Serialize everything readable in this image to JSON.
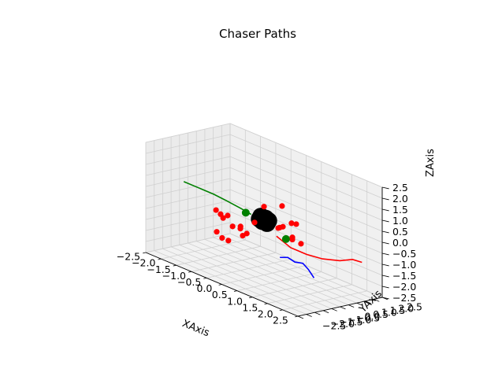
{
  "chart_data": {
    "type": "scatter3d",
    "title": "Chaser Paths",
    "xlabel": "XAxis",
    "ylabel": "YAxis",
    "zlabel": "ZAxis",
    "xlim": [
      -2.5,
      2.5
    ],
    "ylim": [
      -2.5,
      2.5
    ],
    "zlim": [
      -2.5,
      2.5
    ],
    "tick_values": [
      -2.5,
      -2.0,
      -1.5,
      -1.0,
      -0.5,
      0.0,
      0.5,
      1.0,
      1.5,
      2.0,
      2.5
    ],
    "x_tick_labels": [
      "−2.5",
      "−2.0",
      "−1.5",
      "−1.0",
      "−0.5",
      "0.0",
      "0.5",
      "1.0",
      "1.5",
      "2.0",
      "2.5"
    ],
    "y_tick_labels": [
      "−2.5",
      "−2.0",
      "−1.5",
      "−1.0",
      "−0.5",
      "0.0",
      "0.5",
      "1.0",
      "1.5",
      "2.0",
      "2.5"
    ],
    "z_tick_labels": [
      "−2.5",
      "−2.0",
      "−1.5",
      "−1.0",
      "−0.5",
      "0.0",
      "0.5",
      "1.0",
      "1.5",
      "2.0",
      "2.5"
    ],
    "grid": true,
    "colors": {
      "red": "#ff0000",
      "green": "#008000",
      "blue": "#0000ff",
      "black": "#000000"
    },
    "paths": [
      {
        "color": "#008000",
        "points": [
          [
            -0.2,
            -0.4,
            0.2
          ],
          [
            -0.45,
            -0.55,
            0.35
          ],
          [
            -0.8,
            -0.8,
            0.55
          ],
          [
            -1.1,
            -1.0,
            0.7
          ],
          [
            -1.45,
            -1.3,
            0.85
          ],
          [
            -1.75,
            -1.6,
            1.0
          ]
        ]
      },
      {
        "color": "#ff0000",
        "points": [
          [
            0.3,
            0.2,
            -0.6
          ],
          [
            0.6,
            0.5,
            -1.0
          ],
          [
            0.9,
            0.9,
            -1.2
          ],
          [
            1.2,
            1.3,
            -1.3
          ],
          [
            1.55,
            1.7,
            -1.25
          ],
          [
            1.8,
            2.0,
            -1.1
          ],
          [
            2.0,
            2.2,
            -1.15
          ]
        ]
      },
      {
        "color": "#0000ff",
        "points": [
          [
            0.3,
            0.4,
            -1.6
          ],
          [
            0.45,
            0.6,
            -1.55
          ],
          [
            0.6,
            0.75,
            -1.7
          ],
          [
            0.75,
            0.95,
            -1.7
          ],
          [
            0.85,
            1.1,
            -1.95
          ],
          [
            0.95,
            1.25,
            -2.3
          ]
        ]
      }
    ],
    "red_points": [
      [
        -0.9,
        -0.8,
        -0.3
      ],
      [
        -1.05,
        -0.95,
        0.0
      ],
      [
        -0.9,
        -0.95,
        -0.1
      ],
      [
        -0.75,
        -0.8,
        -0.1
      ],
      [
        -0.55,
        -0.4,
        -0.55
      ],
      [
        -0.4,
        -0.3,
        -0.8
      ],
      [
        -0.7,
        -0.6,
        -0.6
      ],
      [
        -0.5,
        -0.5,
        -0.6
      ],
      [
        -1.0,
        -1.0,
        -0.95
      ],
      [
        -0.85,
        -0.95,
        -1.15
      ],
      [
        -0.7,
        -0.85,
        -1.2
      ],
      [
        -0.45,
        -0.45,
        -0.9
      ],
      [
        -0.2,
        -0.2,
        -0.2
      ],
      [
        0.0,
        0.0,
        0.6
      ],
      [
        0.4,
        0.35,
        0.8
      ],
      [
        0.3,
        0.3,
        -0.25
      ],
      [
        0.4,
        0.4,
        -0.15
      ],
      [
        0.6,
        0.55,
        0.1
      ],
      [
        0.7,
        0.65,
        0.1
      ],
      [
        0.6,
        0.6,
        -0.55
      ],
      [
        0.8,
        0.75,
        -0.75
      ],
      [
        0.6,
        0.6,
        -0.65
      ],
      [
        0.35,
        0.3,
        -0.2
      ]
    ],
    "green_points": [
      [
        -0.35,
        -0.45,
        0.2
      ],
      [
        0.5,
        0.4,
        -0.65
      ]
    ],
    "black_points": [
      [
        0.0,
        0.0,
        0.0
      ],
      [
        0.05,
        0.05,
        -0.05
      ],
      [
        -0.05,
        -0.05,
        0.05
      ],
      [
        0.1,
        0.0,
        -0.1
      ],
      [
        -0.1,
        0.0,
        0.1
      ],
      [
        0.0,
        0.1,
        0.05
      ],
      [
        0.0,
        -0.1,
        -0.05
      ],
      [
        0.08,
        0.08,
        0.0
      ],
      [
        -0.08,
        -0.08,
        0.0
      ],
      [
        0.12,
        0.05,
        0.02
      ],
      [
        -0.12,
        -0.05,
        -0.02
      ]
    ]
  }
}
